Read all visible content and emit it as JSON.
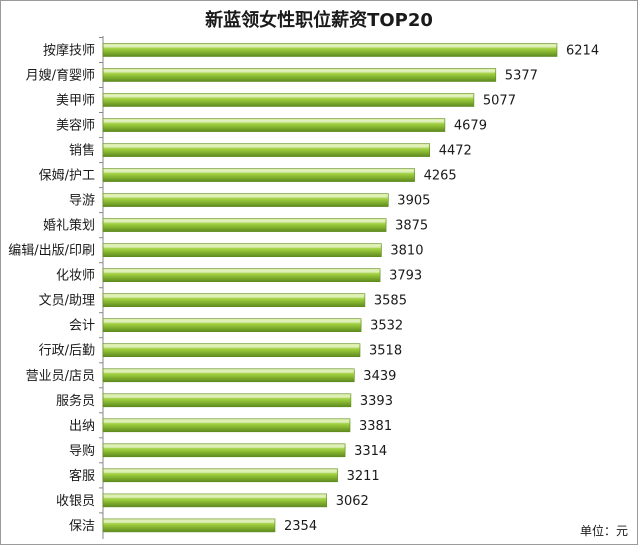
{
  "chart_data": {
    "type": "bar",
    "orientation": "horizontal",
    "title": "新蓝领女性职位薪资TOP20",
    "unit_label": "单位：元",
    "categories": [
      "按摩技师",
      "月嫂/育婴师",
      "美甲师",
      "美容师",
      "销售",
      "保姆/护工",
      "导游",
      "婚礼策划",
      "编辑/出版/印刷",
      "化妆师",
      "文员/助理",
      "会计",
      "行政/后勤",
      "营业员/店员",
      "服务员",
      "出纳",
      "导购",
      "客服",
      "收银员",
      "保洁"
    ],
    "values": [
      6214,
      5377,
      5077,
      4679,
      4472,
      4265,
      3905,
      3875,
      3810,
      3793,
      3585,
      3532,
      3518,
      3439,
      3393,
      3381,
      3314,
      3211,
      3062,
      2354
    ],
    "data_labels": [
      "6214",
      "5377",
      "5077",
      "4679",
      "4472",
      "4265",
      "3905",
      "3875",
      "3810",
      "3793",
      "3585",
      "3532",
      "3518",
      "3439",
      "3393",
      "3381",
      "3314",
      "3211",
      "3062",
      "2354"
    ],
    "xlim": [
      0,
      6214
    ],
    "grid": false,
    "legend": false,
    "bar_color": "#9ccc3c",
    "bar_dark": "#5e8a1e",
    "bar_light": "#e6f5b8"
  }
}
